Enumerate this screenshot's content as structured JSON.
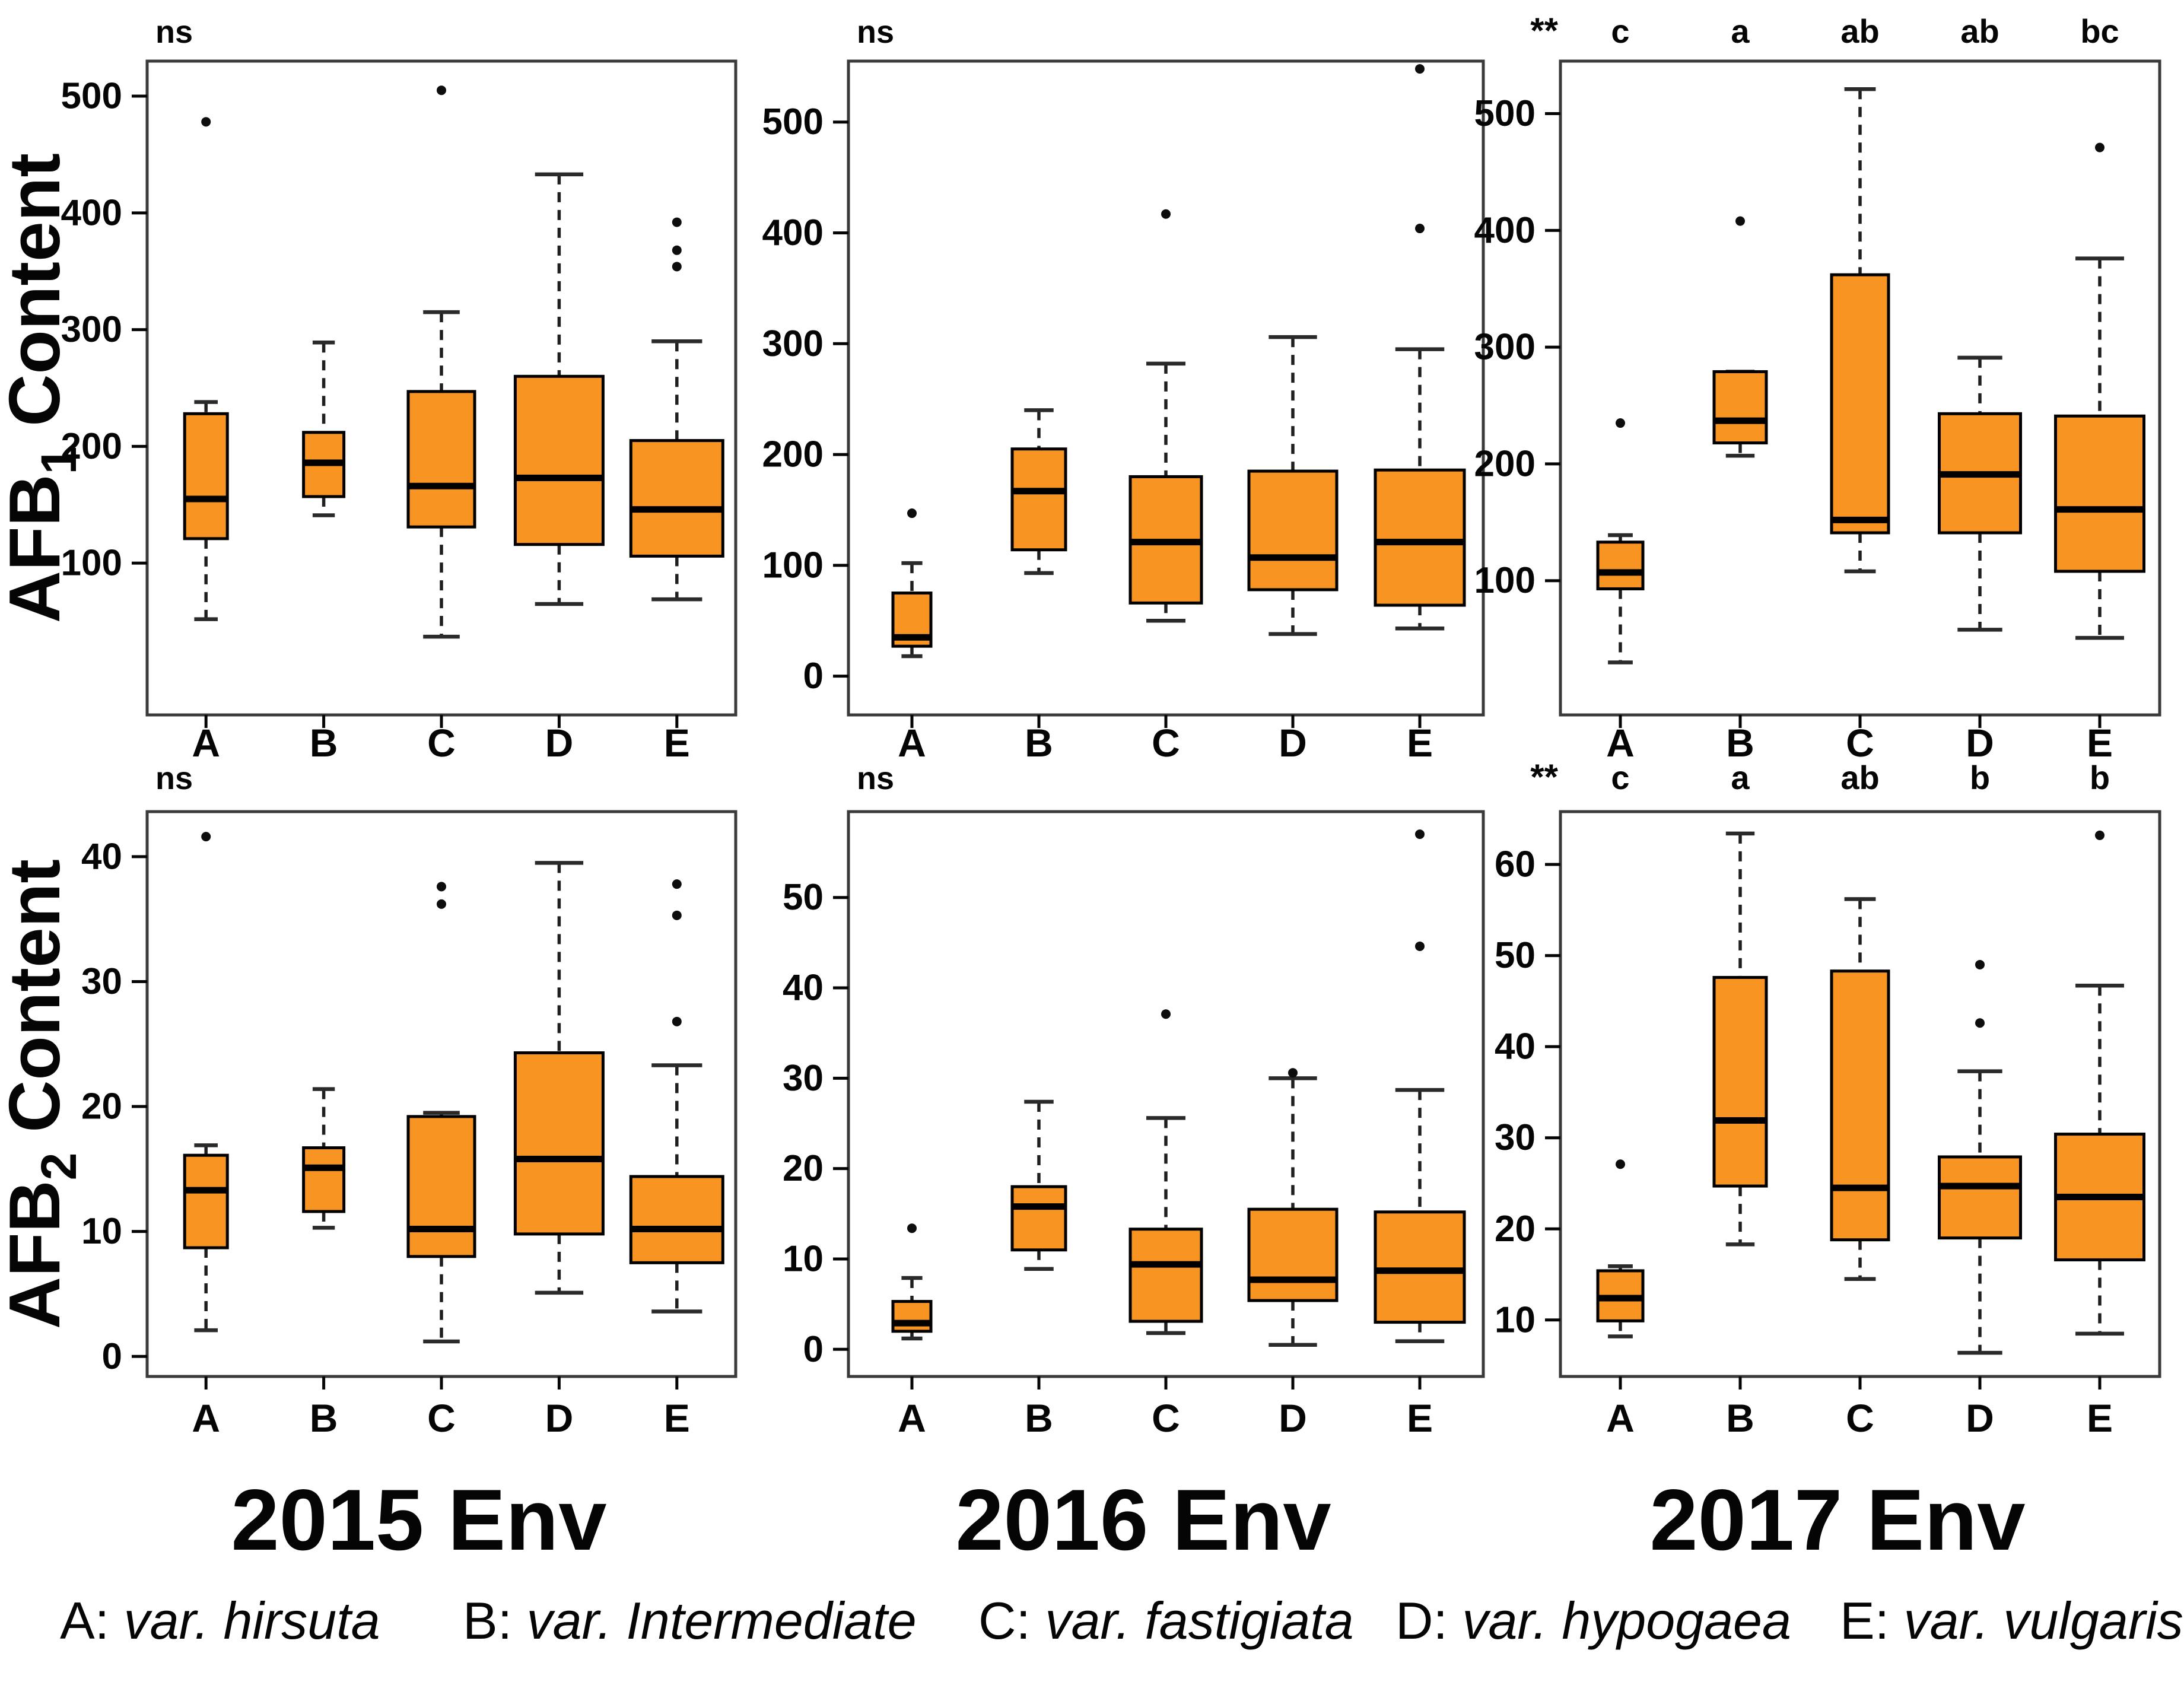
{
  "figure": {
    "row_titles": [
      {
        "prefix": "AFB",
        "sub": "1",
        "suffix": " Content"
      },
      {
        "prefix": "AFB",
        "sub": "2",
        "suffix": " Content"
      }
    ],
    "col_titles": [
      "2015 Env",
      "2016 Env",
      "2017 Env"
    ],
    "categories": [
      "A",
      "B",
      "C",
      "D",
      "E"
    ],
    "legend": [
      {
        "key": "A:",
        "name": "var. hirsuta"
      },
      {
        "key": "B:",
        "name": "var. Intermediate"
      },
      {
        "key": "C:",
        "name": "var. fastigiata"
      },
      {
        "key": "D:",
        "name": "var. hypogaea"
      },
      {
        "key": "E:",
        "name": "var. vulgaris"
      }
    ],
    "colors": {
      "box_fill": "#F89522",
      "box_stroke": "#000000",
      "median": "#000000",
      "whisker": "#1f1f1f",
      "cap": "#2a2a2a",
      "panel_border": "#3a3a3a",
      "text": "#050505",
      "outlier": "#0d0d0d"
    }
  },
  "chart_data": [
    {
      "type": "boxplot",
      "row": 0,
      "col": 0,
      "row_title": "AFB1 Content",
      "col_title": "2015 Env",
      "significance": "ns",
      "group_letters": null,
      "ylim": [
        -30,
        530
      ],
      "yticks": [
        100,
        200,
        300,
        400,
        500
      ],
      "boxes": [
        {
          "cat": "A",
          "lo": 52,
          "q1": 121,
          "med": 155,
          "q3": 228,
          "hi": 238,
          "out": [
            478
          ],
          "w": 72
        },
        {
          "cat": "B",
          "lo": 141,
          "q1": 157,
          "med": 186,
          "q3": 212,
          "hi": 289,
          "out": [],
          "w": 68
        },
        {
          "cat": "C",
          "lo": 37,
          "q1": 131,
          "med": 166,
          "q3": 247,
          "hi": 315,
          "out": [
            505
          ],
          "w": 112
        },
        {
          "cat": "D",
          "lo": 65,
          "q1": 116,
          "med": 173,
          "q3": 260,
          "hi": 433,
          "out": [],
          "w": 148
        },
        {
          "cat": "E",
          "lo": 69,
          "q1": 106,
          "med": 146,
          "q3": 205,
          "hi": 290,
          "out": [
            354,
            368,
            392
          ],
          "w": 155
        }
      ]
    },
    {
      "type": "boxplot",
      "row": 0,
      "col": 1,
      "row_title": "AFB1 Content",
      "col_title": "2016 Env",
      "significance": "ns",
      "group_letters": null,
      "ylim": [
        -35,
        555
      ],
      "yticks": [
        0,
        100,
        200,
        300,
        400,
        500
      ],
      "boxes": [
        {
          "cat": "A",
          "lo": 18,
          "q1": 27,
          "med": 35,
          "q3": 75,
          "hi": 102,
          "out": [
            147
          ],
          "w": 64
        },
        {
          "cat": "B",
          "lo": 93,
          "q1": 114,
          "med": 167,
          "q3": 205,
          "hi": 240,
          "out": [],
          "w": 90
        },
        {
          "cat": "C",
          "lo": 50,
          "q1": 66,
          "med": 121,
          "q3": 180,
          "hi": 282,
          "out": [
            417
          ],
          "w": 120
        },
        {
          "cat": "D",
          "lo": 38,
          "q1": 78,
          "med": 107,
          "q3": 185,
          "hi": 306,
          "out": [],
          "w": 148
        },
        {
          "cat": "E",
          "lo": 43,
          "q1": 64,
          "med": 121,
          "q3": 186,
          "hi": 295,
          "out": [
            404,
            548
          ],
          "w": 150
        }
      ]
    },
    {
      "type": "boxplot",
      "row": 0,
      "col": 2,
      "row_title": "AFB1 Content",
      "col_title": "2017 Env",
      "significance": "**",
      "group_letters": [
        "c",
        "a",
        "ab",
        "ab",
        "bc"
      ],
      "ylim": [
        -15,
        545
      ],
      "yticks": [
        100,
        200,
        300,
        400,
        500
      ],
      "boxes": [
        {
          "cat": "A",
          "lo": 30,
          "q1": 93,
          "med": 107,
          "q3": 133,
          "hi": 139,
          "out": [
            235
          ],
          "w": 76
        },
        {
          "cat": "B",
          "lo": 207,
          "q1": 218,
          "med": 237,
          "q3": 279,
          "hi": 279,
          "out": [
            408
          ],
          "w": 88
        },
        {
          "cat": "C",
          "lo": 108,
          "q1": 141,
          "med": 152,
          "q3": 362,
          "hi": 521,
          "out": [],
          "w": 96
        },
        {
          "cat": "D",
          "lo": 58,
          "q1": 141,
          "med": 191,
          "q3": 243,
          "hi": 291,
          "out": [],
          "w": 137
        },
        {
          "cat": "E",
          "lo": 51,
          "q1": 108,
          "med": 161,
          "q3": 241,
          "hi": 376,
          "out": [
            471
          ],
          "w": 149
        }
      ]
    },
    {
      "type": "boxplot",
      "row": 1,
      "col": 0,
      "row_title": "AFB2 Content",
      "col_title": "2015 Env",
      "significance": "ns",
      "group_letters": null,
      "ylim": [
        -1.6,
        43.6
      ],
      "yticks": [
        0,
        10,
        20,
        30,
        40
      ],
      "boxes": [
        {
          "cat": "A",
          "lo": 2.1,
          "q1": 8.7,
          "med": 13.3,
          "q3": 16.1,
          "hi": 16.9,
          "out": [
            41.6
          ],
          "w": 72
        },
        {
          "cat": "B",
          "lo": 10.3,
          "q1": 11.6,
          "med": 15.1,
          "q3": 16.7,
          "hi": 21.4,
          "out": [],
          "w": 68
        },
        {
          "cat": "C",
          "lo": 1.2,
          "q1": 8.0,
          "med": 10.2,
          "q3": 19.2,
          "hi": 19.5,
          "out": [
            36.2,
            37.6
          ],
          "w": 112
        },
        {
          "cat": "D",
          "lo": 5.1,
          "q1": 9.8,
          "med": 15.8,
          "q3": 24.3,
          "hi": 39.5,
          "out": [],
          "w": 148
        },
        {
          "cat": "E",
          "lo": 3.6,
          "q1": 7.5,
          "med": 10.2,
          "q3": 14.4,
          "hi": 23.3,
          "out": [
            26.8,
            35.3,
            37.8
          ],
          "w": 155
        }
      ]
    },
    {
      "type": "boxplot",
      "row": 1,
      "col": 1,
      "row_title": "AFB2 Content",
      "col_title": "2016 Env",
      "significance": "ns",
      "group_letters": null,
      "ylim": [
        -3,
        59.5
      ],
      "yticks": [
        0,
        10,
        20,
        30,
        40,
        50
      ],
      "boxes": [
        {
          "cat": "A",
          "lo": 1.2,
          "q1": 2.0,
          "med": 2.9,
          "q3": 5.3,
          "hi": 7.9,
          "out": [
            13.4
          ],
          "w": 64
        },
        {
          "cat": "B",
          "lo": 8.9,
          "q1": 11.0,
          "med": 15.8,
          "q3": 18.0,
          "hi": 27.4,
          "out": [],
          "w": 90
        },
        {
          "cat": "C",
          "lo": 1.8,
          "q1": 3.1,
          "med": 9.4,
          "q3": 13.3,
          "hi": 25.6,
          "out": [
            37.1
          ],
          "w": 120
        },
        {
          "cat": "D",
          "lo": 0.5,
          "q1": 5.4,
          "med": 7.7,
          "q3": 15.5,
          "hi": 30.0,
          "out": [
            30.6
          ],
          "w": 148
        },
        {
          "cat": "E",
          "lo": 0.9,
          "q1": 3.0,
          "med": 8.7,
          "q3": 15.2,
          "hi": 28.7,
          "out": [
            44.6,
            57.0
          ],
          "w": 150
        }
      ]
    },
    {
      "type": "boxplot",
      "row": 1,
      "col": 2,
      "row_title": "AFB2 Content",
      "col_title": "2017 Env",
      "significance": "**",
      "group_letters": [
        "c",
        "a",
        "ab",
        "b",
        "b"
      ],
      "ylim": [
        3.8,
        65.8
      ],
      "yticks": [
        10,
        20,
        30,
        40,
        50,
        60
      ],
      "boxes": [
        {
          "cat": "A",
          "lo": 8.2,
          "q1": 9.9,
          "med": 12.4,
          "q3": 15.4,
          "hi": 15.9,
          "out": [
            27.1
          ],
          "w": 76
        },
        {
          "cat": "B",
          "lo": 18.3,
          "q1": 24.7,
          "med": 31.9,
          "q3": 47.6,
          "hi": 63.4,
          "out": [],
          "w": 88
        },
        {
          "cat": "C",
          "lo": 14.5,
          "q1": 18.8,
          "med": 24.5,
          "q3": 48.3,
          "hi": 56.2,
          "out": [],
          "w": 96
        },
        {
          "cat": "D",
          "lo": 6.4,
          "q1": 19.0,
          "med": 24.7,
          "q3": 27.9,
          "hi": 37.3,
          "out": [
            42.6,
            49.0
          ],
          "w": 137
        },
        {
          "cat": "E",
          "lo": 8.5,
          "q1": 16.6,
          "med": 23.5,
          "q3": 30.4,
          "hi": 46.7,
          "out": [
            63.2
          ],
          "w": 149
        }
      ]
    }
  ]
}
